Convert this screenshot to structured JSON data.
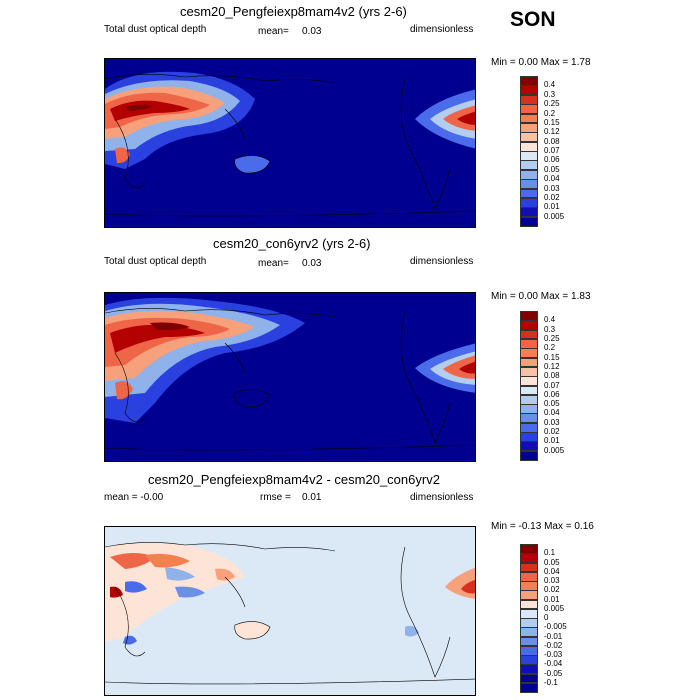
{
  "season": "SON",
  "panels": [
    {
      "title": "cesm20_Pengfeiexp8mam4v2 (yrs 2-6)",
      "left_label": "Total dust optical depth",
      "mean_label": "mean=",
      "mean_value": "0.03",
      "right_label": "dimensionless",
      "minmax": "Min =  0.00 Max =  1.78",
      "colorbar_labels": [
        "0.4",
        "0.3",
        "0.25",
        "0.2",
        "0.15",
        "0.12",
        "0.08",
        "0.07",
        "0.06",
        "0.05",
        "0.04",
        "0.03",
        "0.02",
        "0.01",
        "0.005"
      ]
    },
    {
      "title": "cesm20_con6yrv2 (yrs 2-6)",
      "left_label": "Total dust optical depth",
      "mean_label": "mean=",
      "mean_value": "0.03",
      "right_label": "dimensionless",
      "minmax": "Min =  0.00 Max =  1.83",
      "colorbar_labels": [
        "0.4",
        "0.3",
        "0.25",
        "0.2",
        "0.15",
        "0.12",
        "0.08",
        "0.07",
        "0.06",
        "0.05",
        "0.04",
        "0.03",
        "0.02",
        "0.01",
        "0.005"
      ]
    },
    {
      "title": "cesm20_Pengfeiexp8mam4v2 - cesm20_con6yrv2",
      "left_label": "mean =  -0.00",
      "mean_label": "rmse =",
      "mean_value": "0.01",
      "right_label": "dimensionless",
      "minmax": "Min =  -0.13 Max =  0.16",
      "colorbar_labels": [
        "0.1",
        "0.05",
        "0.04",
        "0.03",
        "0.02",
        "0.01",
        "0.005",
        "0",
        "-0.005",
        "-0.01",
        "-0.02",
        "-0.03",
        "-0.04",
        "-0.05",
        "-0.1"
      ]
    }
  ],
  "colors": {
    "abs_scale": [
      "#7f0000",
      "#b30000",
      "#d7301f",
      "#ef6548",
      "#f4804f",
      "#f6a07c",
      "#f9c2a6",
      "#fde4d6",
      "#dbe9f6",
      "#b3cdef",
      "#8fb2ea",
      "#6b8ee6",
      "#4a6bea",
      "#2a40df",
      "#1010b0",
      "#000090"
    ],
    "diff_scale": [
      "#7f0000",
      "#b30000",
      "#d7301f",
      "#ef6548",
      "#f4804f",
      "#f6a07c",
      "#fde4d6",
      "#dbe9f6",
      "#b3cdef",
      "#8fb2ea",
      "#6b8ee6",
      "#4a6bea",
      "#2a40df",
      "#1010b0",
      "#000090"
    ],
    "abs_background": "#000090",
    "diff_background": "#dbe9f6"
  }
}
